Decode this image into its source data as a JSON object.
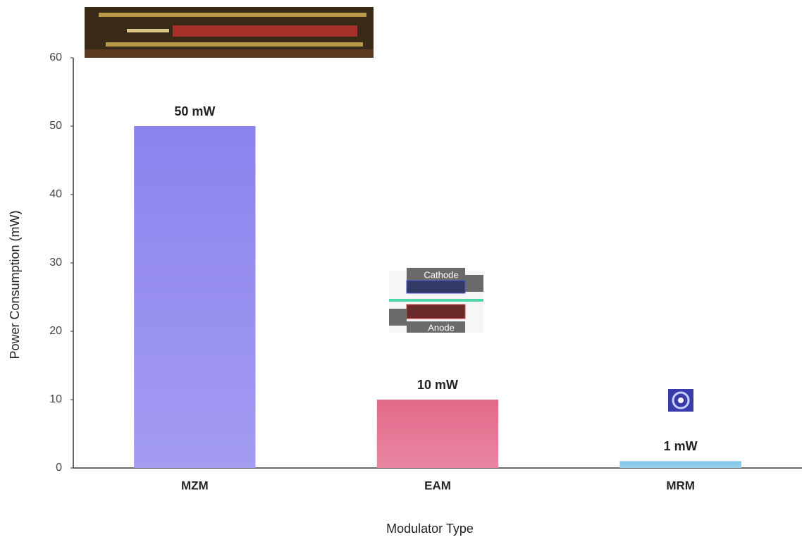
{
  "chart_data": {
    "type": "bar",
    "x_label": "Modulator Type",
    "y_label": "Power Consumption (mW)",
    "categories": [
      "MZM",
      "EAM",
      "MRM"
    ],
    "values": [
      50,
      10,
      1
    ],
    "value_labels": [
      "50 mW",
      "10 mW",
      "1 mW"
    ],
    "colors": [
      "#8c83ee",
      "#e3698a",
      "#7fc6ea"
    ],
    "ylim": [
      0,
      60
    ],
    "yticks": [
      0,
      10,
      20,
      30,
      40,
      50,
      60
    ],
    "grid": false,
    "annotations": [
      "Cathode",
      "Anode"
    ]
  }
}
